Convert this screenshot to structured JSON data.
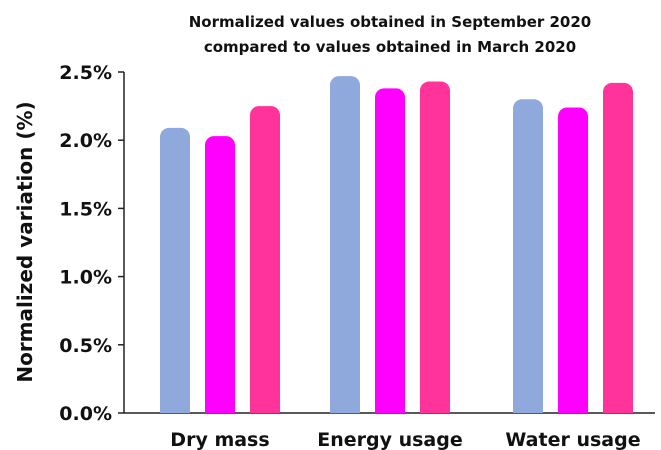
{
  "chart_data": {
    "type": "bar",
    "title": [
      "Normalized values obtained in September 2020",
      "compared to values obtained in March 2020"
    ],
    "xlabel": "",
    "ylabel": "Normalized variation (%)",
    "ylim": [
      0,
      2.5
    ],
    "yticks": [
      "0.0%",
      "0.5%",
      "1.0%",
      "1.5%",
      "2.0%",
      "2.5%"
    ],
    "ytick_values": [
      0,
      0.5,
      1.0,
      1.5,
      2.0,
      2.5
    ],
    "categories": [
      "Dry mass",
      "Energy usage",
      "Water usage"
    ],
    "series": [
      {
        "values": [
          2.09,
          2.47,
          2.3
        ],
        "color": "#8fa9dc"
      },
      {
        "values": [
          2.03,
          2.38,
          2.24
        ],
        "color": "#ff00ff"
      },
      {
        "values": [
          2.25,
          2.43,
          2.42
        ],
        "color": "#ff3399"
      }
    ],
    "grid": false,
    "legend": "none"
  }
}
